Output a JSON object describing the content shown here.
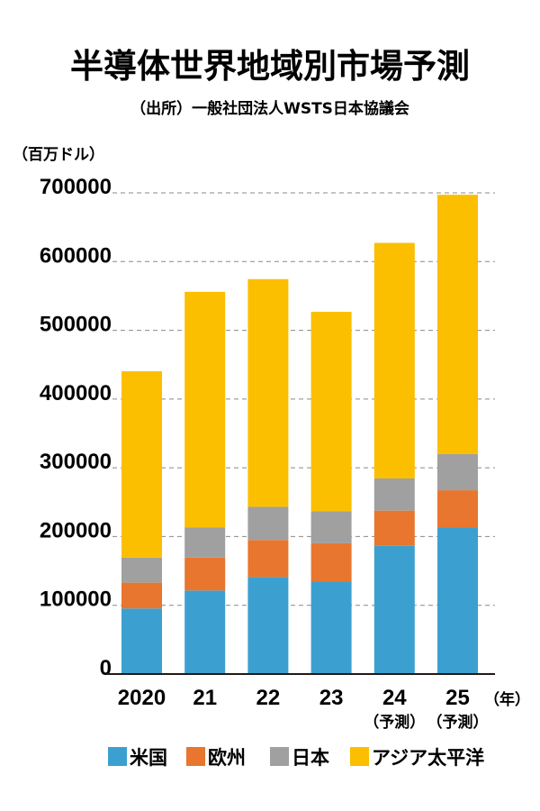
{
  "chart_data": {
    "type": "bar",
    "stacked": true,
    "title": "半導体世界地域別市場予測",
    "subtitle": "（出所）一般社団法人WSTS日本協議会",
    "ylabel": "（百万ドル）",
    "xlabel": "（年）",
    "ylim": [
      0,
      700000
    ],
    "yticks": [
      "0",
      "100000",
      "200000",
      "300000",
      "400000",
      "500000",
      "600000",
      "700000"
    ],
    "grid": true,
    "legend_position": "bottom",
    "categories": [
      "2020",
      "21",
      "22",
      "23",
      "24",
      "25"
    ],
    "category_notes": [
      "",
      "",
      "",
      "",
      "（予測）",
      "（予測）"
    ],
    "series": [
      {
        "name": "米国",
        "color": "#3ba0cf",
        "values": [
          95400,
          121500,
          141100,
          134400,
          186400,
          213600
        ]
      },
      {
        "name": "欧州",
        "color": "#e8762e",
        "values": [
          37500,
          47800,
          53900,
          55800,
          51300,
          53700
        ]
      },
      {
        "name": "日本",
        "color": "#a0a0a0",
        "values": [
          36500,
          43700,
          48200,
          46800,
          46800,
          52600
        ]
      },
      {
        "name": "アジア太平洋",
        "color": "#fbbf00",
        "values": [
          271000,
          343000,
          331300,
          289900,
          342700,
          377300
        ]
      }
    ]
  }
}
